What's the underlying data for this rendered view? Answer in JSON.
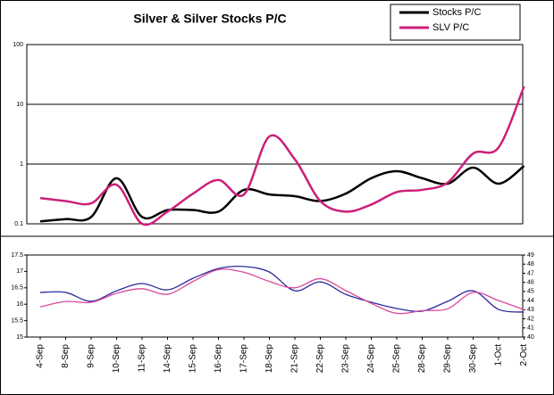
{
  "chart_data": [
    {
      "type": "line",
      "title": "Silver & Silver Stocks P/C",
      "log_scale": true,
      "grid": true,
      "ylim": [
        0.1,
        100
      ],
      "yticks": [
        0.1,
        1,
        10,
        100
      ],
      "legend": "top-right",
      "series": [
        {
          "name": "Stocks P/C",
          "color": "#000000",
          "values": [
            0.11,
            0.12,
            0.13,
            0.58,
            0.13,
            0.17,
            0.17,
            0.16,
            0.37,
            0.31,
            0.29,
            0.24,
            0.32,
            0.58,
            0.76,
            0.58,
            0.47,
            0.87,
            0.47,
            0.93
          ]
        },
        {
          "name": "SLV P/C",
          "color": "#cc1f7a",
          "values": [
            0.27,
            0.24,
            0.22,
            0.45,
            0.1,
            0.16,
            0.32,
            0.54,
            0.31,
            2.9,
            1.2,
            0.24,
            0.16,
            0.21,
            0.34,
            0.37,
            0.49,
            1.5,
            1.9,
            20
          ]
        }
      ]
    },
    {
      "type": "line",
      "grid": false,
      "categories": [
        "4-Sep",
        "8-Sep",
        "9-Sep",
        "10-Sep",
        "11-Sep",
        "14-Sep",
        "15-Sep",
        "16-Sep",
        "17-Sep",
        "18-Sep",
        "21-Sep",
        "22-Sep",
        "23-Sep",
        "24-Sep",
        "25-Sep",
        "28-Sep",
        "29-Sep",
        "30-Sep",
        "1-Oct",
        "2-Oct"
      ],
      "ylim": [
        15,
        17.5
      ],
      "yticks": [
        15,
        15.5,
        16,
        16.5,
        17,
        17.5
      ],
      "y2lim": [
        40,
        49
      ],
      "y2ticks": [
        40,
        41,
        42,
        43,
        44,
        45,
        46,
        47,
        48,
        49
      ],
      "series": [
        {
          "color": "#2b2b9c",
          "values": [
            16.36,
            16.36,
            16.09,
            16.41,
            16.63,
            16.44,
            16.79,
            17.09,
            17.15,
            16.98,
            16.41,
            16.68,
            16.3,
            16.06,
            15.87,
            15.79,
            16.09,
            16.41,
            15.84,
            15.76
          ]
        },
        {
          "color": "#d9479a",
          "axis": "y2",
          "values": [
            43.3,
            43.9,
            43.8,
            44.8,
            45.3,
            44.7,
            46.1,
            47.4,
            47.1,
            46.1,
            45.4,
            46.4,
            45.1,
            43.7,
            42.6,
            42.9,
            43.1,
            44.9,
            44.0,
            43.0
          ]
        }
      ]
    }
  ]
}
